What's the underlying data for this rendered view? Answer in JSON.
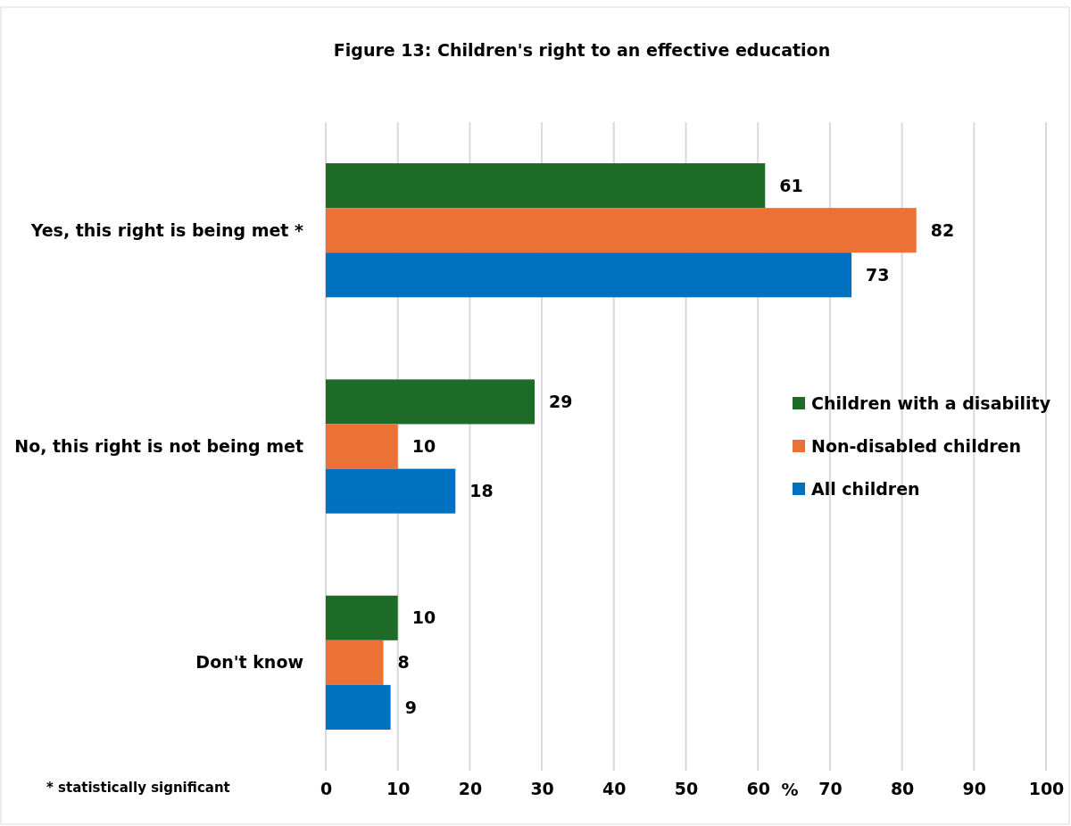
{
  "chart_data": {
    "type": "bar",
    "orientation": "horizontal",
    "title": "Figure 13: Children's right to an effective education",
    "categories": [
      "Yes, this right is being met *",
      "No, this right is not being met",
      "Don't know"
    ],
    "series": [
      {
        "name": "Children with a disability",
        "color": "#1e6b27",
        "values": [
          61,
          29,
          10
        ]
      },
      {
        "name": "Non-disabled children",
        "color": "#eb7234",
        "values": [
          82,
          10,
          8
        ]
      },
      {
        "name": "All children",
        "color": "#0070c0",
        "values": [
          73,
          18,
          9
        ]
      }
    ],
    "xlim": [
      0,
      100
    ],
    "xticks": [
      0,
      10,
      20,
      30,
      40,
      50,
      60,
      70,
      80,
      90,
      100
    ],
    "xlabel": "%",
    "grid": "x",
    "legend": "right",
    "data_labels": true,
    "annotations": [
      "* statistically significant"
    ]
  }
}
